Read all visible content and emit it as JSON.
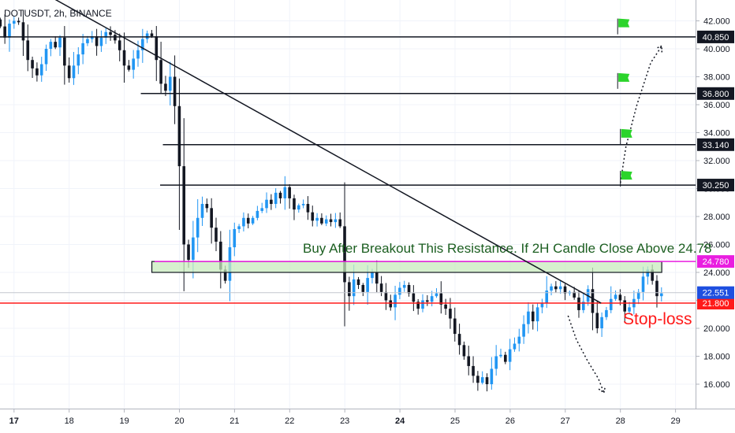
{
  "chart_data": {
    "type": "candlestick",
    "title": "DOTUSDT, 2h, BINANCE",
    "ylim": [
      14.0,
      43.5
    ],
    "y_ticks": [
      "16.000",
      "18.000",
      "20.000",
      "22.000",
      "24.000",
      "26.000",
      "28.000",
      "30.000",
      "32.000",
      "34.000",
      "36.000",
      "38.000",
      "40.000",
      "42.000"
    ],
    "x_ticks": [
      {
        "label": "17",
        "day": 17,
        "bold": true
      },
      {
        "label": "18",
        "day": 18,
        "bold": false
      },
      {
        "label": "19",
        "day": 19,
        "bold": false
      },
      {
        "label": "20",
        "day": 20,
        "bold": false
      },
      {
        "label": "21",
        "day": 21,
        "bold": false
      },
      {
        "label": "22",
        "day": 22,
        "bold": false
      },
      {
        "label": "23",
        "day": 23,
        "bold": false
      },
      {
        "label": "24",
        "day": 24,
        "bold": true
      },
      {
        "label": "25",
        "day": 25,
        "bold": false
      },
      {
        "label": "26",
        "day": 26,
        "bold": false
      },
      {
        "label": "27",
        "day": 27,
        "bold": false
      },
      {
        "label": "28",
        "day": 28,
        "bold": false
      },
      {
        "label": "29",
        "day": 29,
        "bold": false
      }
    ],
    "x_range": [
      16.75,
      29.85
    ],
    "candle_start_day": 16.75,
    "candle_step_days": 0.0833,
    "colors": {
      "up": "#2196f3",
      "down": "#131722",
      "resistance": "#e91ee0",
      "stop": "#ff1a1a",
      "flag": "#2bd42b",
      "label_green": "#1b5e20"
    },
    "closes": [
      41.6,
      40.8,
      41.8,
      42.0,
      41.9,
      40.6,
      39.2,
      38.6,
      38.1,
      38.9,
      40.0,
      40.5,
      40.1,
      40.8,
      38.8,
      37.9,
      38.8,
      39.6,
      40.4,
      40.7,
      40.9,
      40.2,
      40.8,
      41.2,
      41.0,
      40.6,
      39.9,
      38.8,
      38.5,
      39.3,
      39.9,
      40.7,
      41.1,
      40.9,
      39.2,
      37.5,
      37.0,
      38.0,
      35.9,
      31.6,
      26.0,
      24.9,
      26.5,
      27.9,
      28.9,
      28.6,
      27.2,
      26.2,
      24.2,
      23.4,
      25.8,
      27.1,
      27.3,
      27.9,
      27.5,
      27.9,
      28.4,
      28.6,
      29.2,
      28.9,
      29.7,
      29.3,
      30.1,
      29.3,
      28.5,
      28.8,
      28.9,
      28.3,
      27.7,
      27.9,
      27.5,
      27.8,
      27.6,
      27.8,
      27.3,
      23.3,
      22.3,
      23.5,
      23.1,
      22.6,
      23.6,
      24.0,
      23.2,
      22.6,
      22.0,
      21.5,
      22.4,
      22.9,
      23.1,
      22.5,
      21.9,
      21.4,
      22.0,
      21.9,
      22.3,
      22.5,
      21.7,
      21.4,
      20.7,
      19.6,
      18.8,
      18.0,
      17.3,
      16.6,
      16.1,
      16.5,
      16.0,
      17.1,
      18.0,
      18.1,
      17.6,
      18.5,
      18.9,
      19.4,
      20.3,
      21.2,
      20.5,
      21.5,
      21.8,
      22.7,
      23.0,
      22.8,
      23.0,
      22.5,
      22.6,
      22.2,
      21.3,
      21.9,
      22.8,
      21.1,
      20.0,
      20.8,
      21.3,
      22.1,
      22.4,
      22.0,
      21.2,
      21.5,
      22.1,
      22.6,
      23.7,
      24.2,
      23.4,
      22.3,
      22.5
    ]
  },
  "horizontal_lines": [
    {
      "name": "line-40850",
      "value": 40.85,
      "from_day": 16.7,
      "color": "#131722",
      "label": "40.850"
    },
    {
      "name": "line-36800",
      "value": 36.8,
      "from_day": 19.3,
      "color": "#131722",
      "label": "36.800"
    },
    {
      "name": "line-33140",
      "value": 33.14,
      "from_day": 19.7,
      "color": "#131722",
      "label": "33.140"
    },
    {
      "name": "line-30250",
      "value": 30.25,
      "from_day": 19.65,
      "color": "#131722",
      "label": "30.250"
    },
    {
      "name": "line-24780",
      "value": 24.78,
      "from_day": 19.55,
      "color": "#e91ee0",
      "label": "24.780"
    },
    {
      "name": "line-21800",
      "value": 21.8,
      "from_day": 16.5,
      "color": "#ff1a1a",
      "label": "21.800"
    }
  ],
  "current_price": {
    "value": 22.551,
    "label": "22.551",
    "color": "#1e4fe0"
  },
  "resistance_box": {
    "from_day": 19.5,
    "to_day": 28.75,
    "top": 24.78,
    "bottom": 24.0
  },
  "trendline": {
    "day1": 16.85,
    "price1": 45.5,
    "day2": 27.65,
    "price2": 21.8
  },
  "arrows": [
    {
      "name": "up-projection-arrow",
      "points": [
        [
          28.0,
          30.4
        ],
        [
          28.1,
          33.0
        ],
        [
          28.3,
          36.0
        ],
        [
          28.55,
          39.0
        ],
        [
          28.75,
          40.2
        ]
      ],
      "head": "up"
    },
    {
      "name": "down-projection-arrow",
      "points": [
        [
          27.05,
          20.9
        ],
        [
          27.2,
          19.2
        ],
        [
          27.4,
          17.7
        ],
        [
          27.6,
          16.4
        ],
        [
          27.7,
          15.4
        ]
      ],
      "head": "down"
    }
  ],
  "flags": [
    {
      "name": "target-flag-1",
      "day": 27.95,
      "price": 41.6
    },
    {
      "name": "target-flag-2",
      "day": 27.95,
      "price": 37.7
    },
    {
      "name": "target-flag-3",
      "day": 28.0,
      "price": 33.7
    },
    {
      "name": "target-flag-4",
      "day": 28.0,
      "price": 30.7
    }
  ],
  "annotations": {
    "buy_note": "Buy After Breakout This Resistance. If 2H Candle Close Above 24.78",
    "stop_loss": "Stop-loss"
  }
}
